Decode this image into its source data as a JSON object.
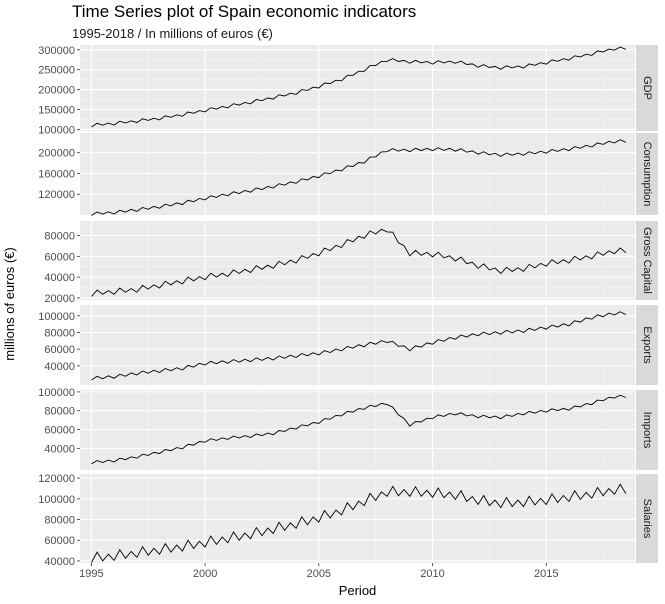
{
  "chart_data": {
    "type": "line",
    "title": "Time Series plot of Spain economic indicators",
    "subtitle": "1995-2018 / In millions of euros (€)",
    "xlabel": "Period",
    "ylabel": "millions of euros (€)",
    "x_ticks": [
      "1995",
      "2000",
      "2005",
      "2010",
      "2015"
    ],
    "x_tick_values": [
      1995,
      2000,
      2005,
      2010,
      2015
    ],
    "xlim": [
      1994.5,
      2018.9
    ],
    "grid": true,
    "frequency": "quarterly",
    "start": 1995.0,
    "panels": [
      {
        "name": "GDP",
        "ylim": [
          96000,
          312000
        ],
        "y_ticks": [
          100000,
          150000,
          200000,
          250000,
          300000
        ],
        "y_tick_labels": [
          "100000",
          "150000",
          "200000",
          "250000",
          "300000"
        ],
        "annual": [
          [
            1995,
            110000
          ],
          [
            1996,
            115000
          ],
          [
            1997,
            121000
          ],
          [
            1998,
            128000
          ],
          [
            1999,
            137000
          ],
          [
            2000,
            148000
          ],
          [
            2001,
            158000
          ],
          [
            2002,
            168000
          ],
          [
            2003,
            180000
          ],
          [
            2004,
            192000
          ],
          [
            2005,
            208000
          ],
          [
            2006,
            226000
          ],
          [
            2007,
            250000
          ],
          [
            2008,
            275000
          ],
          [
            2009,
            270000
          ],
          [
            2010,
            268000
          ],
          [
            2011,
            270000
          ],
          [
            2012,
            260000
          ],
          [
            2013,
            255000
          ],
          [
            2014,
            258000
          ],
          [
            2015,
            268000
          ],
          [
            2016,
            278000
          ],
          [
            2017,
            290000
          ],
          [
            2018,
            303000
          ]
        ],
        "seasonal": [
          -4000,
          4000,
          -2000,
          2000
        ]
      },
      {
        "name": "Consumption",
        "ylim": [
          80000,
          238000
        ],
        "y_ticks": [
          120000,
          160000,
          200000
        ],
        "y_tick_labels": [
          "120000",
          "160000",
          "200000"
        ],
        "annual": [
          [
            1995,
            82000
          ],
          [
            1996,
            85000
          ],
          [
            1997,
            90000
          ],
          [
            1998,
            96000
          ],
          [
            1999,
            103000
          ],
          [
            2000,
            112000
          ],
          [
            2001,
            120000
          ],
          [
            2002,
            127000
          ],
          [
            2003,
            135000
          ],
          [
            2004,
            144000
          ],
          [
            2005,
            155000
          ],
          [
            2006,
            168000
          ],
          [
            2007,
            183000
          ],
          [
            2008,
            205000
          ],
          [
            2009,
            205000
          ],
          [
            2010,
            207000
          ],
          [
            2011,
            206000
          ],
          [
            2012,
            200000
          ],
          [
            2013,
            196000
          ],
          [
            2014,
            198000
          ],
          [
            2015,
            202000
          ],
          [
            2016,
            207000
          ],
          [
            2017,
            214000
          ],
          [
            2018,
            222000
          ]
        ],
        "seasonal": [
          -3000,
          3000,
          -2000,
          2000
        ]
      },
      {
        "name": "Gross Capital",
        "ylim": [
          18000,
          94000
        ],
        "y_ticks": [
          20000,
          40000,
          60000,
          80000
        ],
        "y_tick_labels": [
          "20000",
          "40000",
          "60000",
          "80000"
        ],
        "annual": [
          [
            1995,
            24000
          ],
          [
            1996,
            26000
          ],
          [
            1997,
            28000
          ],
          [
            1998,
            32000
          ],
          [
            1999,
            36000
          ],
          [
            2000,
            40000
          ],
          [
            2001,
            43000
          ],
          [
            2002,
            47000
          ],
          [
            2003,
            51000
          ],
          [
            2004,
            56000
          ],
          [
            2005,
            63000
          ],
          [
            2006,
            71000
          ],
          [
            2007,
            80000
          ],
          [
            2008,
            86000
          ],
          [
            2009,
            63000
          ],
          [
            2010,
            62000
          ],
          [
            2011,
            58000
          ],
          [
            2012,
            51000
          ],
          [
            2013,
            46000
          ],
          [
            2014,
            48000
          ],
          [
            2015,
            53000
          ],
          [
            2016,
            56000
          ],
          [
            2017,
            60000
          ],
          [
            2018,
            65000
          ]
        ],
        "seasonal": [
          -2500,
          3000,
          -1500,
          1500
        ]
      },
      {
        "name": "Exports",
        "ylim": [
          17000,
          113000
        ],
        "y_ticks": [
          40000,
          60000,
          80000,
          100000
        ],
        "y_tick_labels": [
          "40000",
          "60000",
          "80000",
          "100000"
        ],
        "annual": [
          [
            1995,
            25000
          ],
          [
            1996,
            27000
          ],
          [
            1997,
            31000
          ],
          [
            1998,
            34000
          ],
          [
            1999,
            37000
          ],
          [
            2000,
            43000
          ],
          [
            2001,
            45000
          ],
          [
            2002,
            47000
          ],
          [
            2003,
            49000
          ],
          [
            2004,
            52000
          ],
          [
            2005,
            55000
          ],
          [
            2006,
            60000
          ],
          [
            2007,
            65000
          ],
          [
            2008,
            70000
          ],
          [
            2009,
            60000
          ],
          [
            2010,
            68000
          ],
          [
            2011,
            74000
          ],
          [
            2012,
            78000
          ],
          [
            2013,
            80000
          ],
          [
            2014,
            82000
          ],
          [
            2015,
            86000
          ],
          [
            2016,
            90000
          ],
          [
            2017,
            98000
          ],
          [
            2018,
            103000
          ]
        ],
        "seasonal": [
          -2000,
          2000,
          -1500,
          1500
        ]
      },
      {
        "name": "Imports",
        "ylim": [
          17000,
          102000
        ],
        "y_ticks": [
          40000,
          60000,
          80000,
          100000
        ],
        "y_tick_labels": [
          "40000",
          "60000",
          "80000",
          "100000"
        ],
        "annual": [
          [
            1995,
            25000
          ],
          [
            1996,
            27000
          ],
          [
            1997,
            31000
          ],
          [
            1998,
            36000
          ],
          [
            1999,
            41000
          ],
          [
            2000,
            48000
          ],
          [
            2001,
            51000
          ],
          [
            2002,
            53000
          ],
          [
            2003,
            56000
          ],
          [
            2004,
            62000
          ],
          [
            2005,
            68000
          ],
          [
            2006,
            76000
          ],
          [
            2007,
            83000
          ],
          [
            2008,
            88000
          ],
          [
            2009,
            65000
          ],
          [
            2010,
            73000
          ],
          [
            2011,
            77000
          ],
          [
            2012,
            74000
          ],
          [
            2013,
            73000
          ],
          [
            2014,
            77000
          ],
          [
            2015,
            80000
          ],
          [
            2016,
            82000
          ],
          [
            2017,
            88000
          ],
          [
            2018,
            95000
          ]
        ],
        "seasonal": [
          -1500,
          1500,
          -1000,
          1000
        ]
      },
      {
        "name": "Salaries",
        "ylim": [
          38000,
          124000
        ],
        "y_ticks": [
          40000,
          60000,
          80000,
          100000,
          120000
        ],
        "y_tick_labels": [
          "40000",
          "60000",
          "80000",
          "100000",
          "120000"
        ],
        "annual": [
          [
            1995,
            42000
          ],
          [
            1996,
            44000
          ],
          [
            1997,
            47000
          ],
          [
            1998,
            50000
          ],
          [
            1999,
            53000
          ],
          [
            2000,
            57000
          ],
          [
            2001,
            61000
          ],
          [
            2002,
            65000
          ],
          [
            2003,
            70000
          ],
          [
            2004,
            75000
          ],
          [
            2005,
            81000
          ],
          [
            2006,
            88000
          ],
          [
            2007,
            97000
          ],
          [
            2008,
            106000
          ],
          [
            2009,
            106000
          ],
          [
            2010,
            105000
          ],
          [
            2011,
            103000
          ],
          [
            2012,
            98000
          ],
          [
            2013,
            95000
          ],
          [
            2014,
            96000
          ],
          [
            2015,
            98000
          ],
          [
            2016,
            101000
          ],
          [
            2017,
            104000
          ],
          [
            2018,
            108000
          ]
        ],
        "seasonal": [
          -3500,
          6000,
          -3000,
          3000
        ]
      }
    ]
  }
}
